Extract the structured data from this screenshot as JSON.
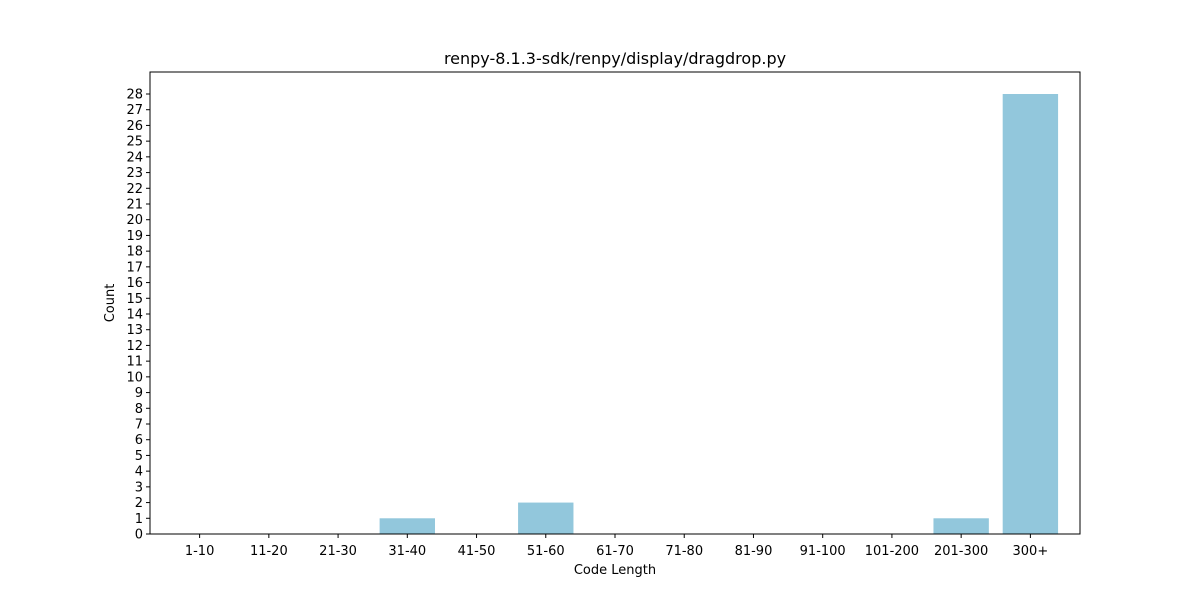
{
  "chart_data": {
    "type": "bar",
    "title": "renpy-8.1.3-sdk/renpy/display/dragdrop.py",
    "xlabel": "Code Length",
    "ylabel": "Count",
    "categories": [
      "1-10",
      "11-20",
      "21-30",
      "31-40",
      "41-50",
      "51-60",
      "61-70",
      "71-80",
      "81-90",
      "91-100",
      "101-200",
      "201-300",
      "300+"
    ],
    "values": [
      0,
      0,
      0,
      1,
      0,
      2,
      0,
      0,
      0,
      0,
      0,
      1,
      28
    ],
    "ylim": [
      0,
      29.4
    ],
    "yticks": [
      0,
      1,
      2,
      3,
      4,
      5,
      6,
      7,
      8,
      9,
      10,
      11,
      12,
      13,
      14,
      15,
      16,
      17,
      18,
      19,
      20,
      21,
      22,
      23,
      24,
      25,
      26,
      27,
      28
    ],
    "grid": false,
    "legend": "none",
    "bar_color": "#92c7dc"
  }
}
